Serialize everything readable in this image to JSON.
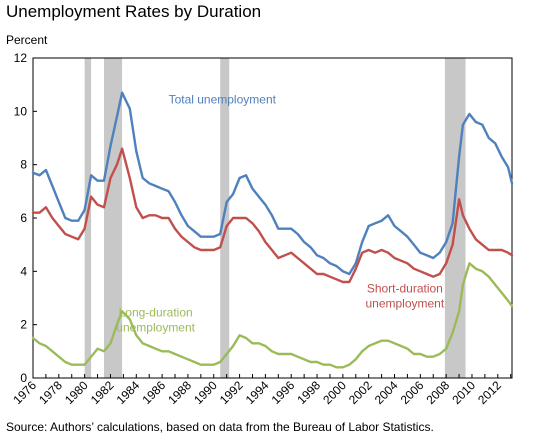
{
  "chart_data": {
    "type": "line",
    "title": "Unemployment Rates by Duration",
    "ylabel": "Percent",
    "source": "Source: Authors’ calculations, based on data from the Bureau of Labor Statistics.",
    "xlim": [
      1976,
      2013.1
    ],
    "ylim": [
      0,
      12
    ],
    "x_ticks": [
      1976,
      1978,
      1980,
      1982,
      1984,
      1986,
      1988,
      1990,
      1992,
      1994,
      1996,
      1998,
      2000,
      2002,
      2004,
      2006,
      2008,
      2010,
      2012
    ],
    "y_ticks": [
      0,
      2,
      4,
      6,
      8,
      10,
      12
    ],
    "grid": false,
    "legend": "none",
    "recessions": [
      [
        1980.0,
        1980.5
      ],
      [
        1981.5,
        1982.9
      ],
      [
        1990.5,
        1991.2
      ],
      [
        2007.9,
        2009.5
      ]
    ],
    "recession_color": "#c8c8c8",
    "series": [
      {
        "name": "Total unemployment",
        "color": "#4f81bd",
        "x": [
          1976.0,
          1976.5,
          1977.0,
          1977.5,
          1978.0,
          1978.5,
          1979.0,
          1979.5,
          1980.0,
          1980.5,
          1981.0,
          1981.5,
          1982.0,
          1982.5,
          1982.9,
          1983.5,
          1984.0,
          1984.5,
          1985.0,
          1985.5,
          1986.0,
          1986.5,
          1987.0,
          1987.5,
          1988.0,
          1988.5,
          1989.0,
          1989.5,
          1990.0,
          1990.5,
          1991.0,
          1991.5,
          1992.0,
          1992.5,
          1993.0,
          1993.5,
          1994.0,
          1994.5,
          1995.0,
          1995.5,
          1996.0,
          1996.5,
          1997.0,
          1997.5,
          1998.0,
          1998.5,
          1999.0,
          1999.5,
          2000.0,
          2000.5,
          2001.0,
          2001.5,
          2002.0,
          2002.5,
          2003.0,
          2003.5,
          2004.0,
          2004.5,
          2005.0,
          2005.5,
          2006.0,
          2006.5,
          2007.0,
          2007.5,
          2008.0,
          2008.5,
          2009.0,
          2009.3,
          2009.8,
          2010.3,
          2010.8,
          2011.3,
          2011.8,
          2012.3,
          2012.8,
          2013.1
        ],
        "values": [
          7.7,
          7.6,
          7.8,
          7.2,
          6.6,
          6.0,
          5.9,
          5.9,
          6.3,
          7.6,
          7.4,
          7.4,
          8.7,
          9.8,
          10.7,
          10.1,
          8.5,
          7.5,
          7.3,
          7.2,
          7.1,
          7.0,
          6.6,
          6.1,
          5.7,
          5.5,
          5.3,
          5.3,
          5.3,
          5.4,
          6.6,
          6.9,
          7.5,
          7.6,
          7.1,
          6.8,
          6.5,
          6.1,
          5.6,
          5.6,
          5.6,
          5.4,
          5.1,
          4.9,
          4.6,
          4.5,
          4.3,
          4.2,
          4.0,
          3.9,
          4.3,
          5.1,
          5.7,
          5.8,
          5.9,
          6.1,
          5.7,
          5.5,
          5.3,
          5.0,
          4.7,
          4.6,
          4.5,
          4.7,
          5.1,
          5.8,
          8.3,
          9.5,
          9.9,
          9.6,
          9.5,
          9.0,
          8.8,
          8.3,
          7.9,
          7.3
        ]
      },
      {
        "name": "Short-duration unemployment",
        "color": "#c0504d",
        "x": [
          1976.0,
          1976.5,
          1977.0,
          1977.5,
          1978.0,
          1978.5,
          1979.0,
          1979.5,
          1980.0,
          1980.5,
          1981.0,
          1981.5,
          1982.0,
          1982.5,
          1982.9,
          1983.5,
          1984.0,
          1984.5,
          1985.0,
          1985.5,
          1986.0,
          1986.5,
          1987.0,
          1987.5,
          1988.0,
          1988.5,
          1989.0,
          1989.5,
          1990.0,
          1990.5,
          1991.0,
          1991.5,
          1992.0,
          1992.5,
          1993.0,
          1993.5,
          1994.0,
          1994.5,
          1995.0,
          1995.5,
          1996.0,
          1996.5,
          1997.0,
          1997.5,
          1998.0,
          1998.5,
          1999.0,
          1999.5,
          2000.0,
          2000.5,
          2001.0,
          2001.5,
          2002.0,
          2002.5,
          2003.0,
          2003.5,
          2004.0,
          2004.5,
          2005.0,
          2005.5,
          2006.0,
          2006.5,
          2007.0,
          2007.5,
          2008.0,
          2008.5,
          2009.0,
          2009.3,
          2009.8,
          2010.3,
          2010.8,
          2011.3,
          2011.8,
          2012.3,
          2012.8,
          2013.1
        ],
        "values": [
          6.2,
          6.2,
          6.4,
          6.0,
          5.7,
          5.4,
          5.3,
          5.2,
          5.6,
          6.8,
          6.5,
          6.4,
          7.5,
          8.0,
          8.6,
          7.5,
          6.4,
          6.0,
          6.1,
          6.1,
          6.0,
          6.0,
          5.6,
          5.3,
          5.1,
          4.9,
          4.8,
          4.8,
          4.8,
          4.9,
          5.7,
          6.0,
          6.0,
          6.0,
          5.8,
          5.5,
          5.1,
          4.8,
          4.5,
          4.6,
          4.7,
          4.5,
          4.3,
          4.1,
          3.9,
          3.9,
          3.8,
          3.7,
          3.6,
          3.6,
          4.1,
          4.7,
          4.8,
          4.7,
          4.8,
          4.7,
          4.5,
          4.4,
          4.3,
          4.1,
          4.0,
          3.9,
          3.8,
          3.9,
          4.3,
          5.0,
          6.7,
          6.1,
          5.6,
          5.2,
          5.0,
          4.8,
          4.8,
          4.8,
          4.7,
          4.6
        ]
      },
      {
        "name": "Long-duration unemployment",
        "color": "#9bbb59",
        "x": [
          1976.0,
          1976.5,
          1977.0,
          1977.5,
          1978.0,
          1978.5,
          1979.0,
          1979.5,
          1980.0,
          1980.5,
          1981.0,
          1981.5,
          1982.0,
          1982.5,
          1982.9,
          1983.5,
          1984.0,
          1984.5,
          1985.0,
          1985.5,
          1986.0,
          1986.5,
          1987.0,
          1987.5,
          1988.0,
          1988.5,
          1989.0,
          1989.5,
          1990.0,
          1990.5,
          1991.0,
          1991.5,
          1992.0,
          1992.5,
          1993.0,
          1993.5,
          1994.0,
          1994.5,
          1995.0,
          1995.5,
          1996.0,
          1996.5,
          1997.0,
          1997.5,
          1998.0,
          1998.5,
          1999.0,
          1999.5,
          2000.0,
          2000.5,
          2001.0,
          2001.5,
          2002.0,
          2002.5,
          2003.0,
          2003.5,
          2004.0,
          2004.5,
          2005.0,
          2005.5,
          2006.0,
          2006.5,
          2007.0,
          2007.5,
          2008.0,
          2008.5,
          2009.0,
          2009.3,
          2009.8,
          2010.3,
          2010.8,
          2011.3,
          2011.8,
          2012.3,
          2012.8,
          2013.1
        ],
        "values": [
          1.5,
          1.3,
          1.2,
          1.0,
          0.8,
          0.6,
          0.5,
          0.5,
          0.5,
          0.8,
          1.1,
          1.0,
          1.3,
          2.0,
          2.5,
          2.2,
          1.6,
          1.3,
          1.2,
          1.1,
          1.0,
          1.0,
          0.9,
          0.8,
          0.7,
          0.6,
          0.5,
          0.5,
          0.5,
          0.6,
          0.9,
          1.2,
          1.6,
          1.5,
          1.3,
          1.3,
          1.2,
          1.0,
          0.9,
          0.9,
          0.9,
          0.8,
          0.7,
          0.6,
          0.6,
          0.5,
          0.5,
          0.4,
          0.4,
          0.5,
          0.7,
          1.0,
          1.2,
          1.3,
          1.4,
          1.4,
          1.3,
          1.2,
          1.1,
          0.9,
          0.9,
          0.8,
          0.8,
          0.9,
          1.1,
          1.7,
          2.5,
          3.5,
          4.3,
          4.1,
          4.0,
          3.8,
          3.5,
          3.2,
          2.9,
          2.7
        ]
      }
    ],
    "annotations": [
      {
        "text": "Total unemployment",
        "series": 0,
        "x": 1986.5,
        "y": 10.3,
        "lines": [
          "Total unemployment"
        ],
        "align": "start"
      },
      {
        "text": "Short-duration unemployment",
        "series": 1,
        "x": 2004.8,
        "y": 3.2,
        "lines": [
          "Short-duration",
          "unemployment"
        ],
        "align": "middle"
      },
      {
        "text": "Long-duration unemployment",
        "series": 2,
        "x": 1985.5,
        "y": 2.3,
        "lines": [
          "Long-duration",
          "unemployment"
        ],
        "align": "middle"
      }
    ]
  }
}
